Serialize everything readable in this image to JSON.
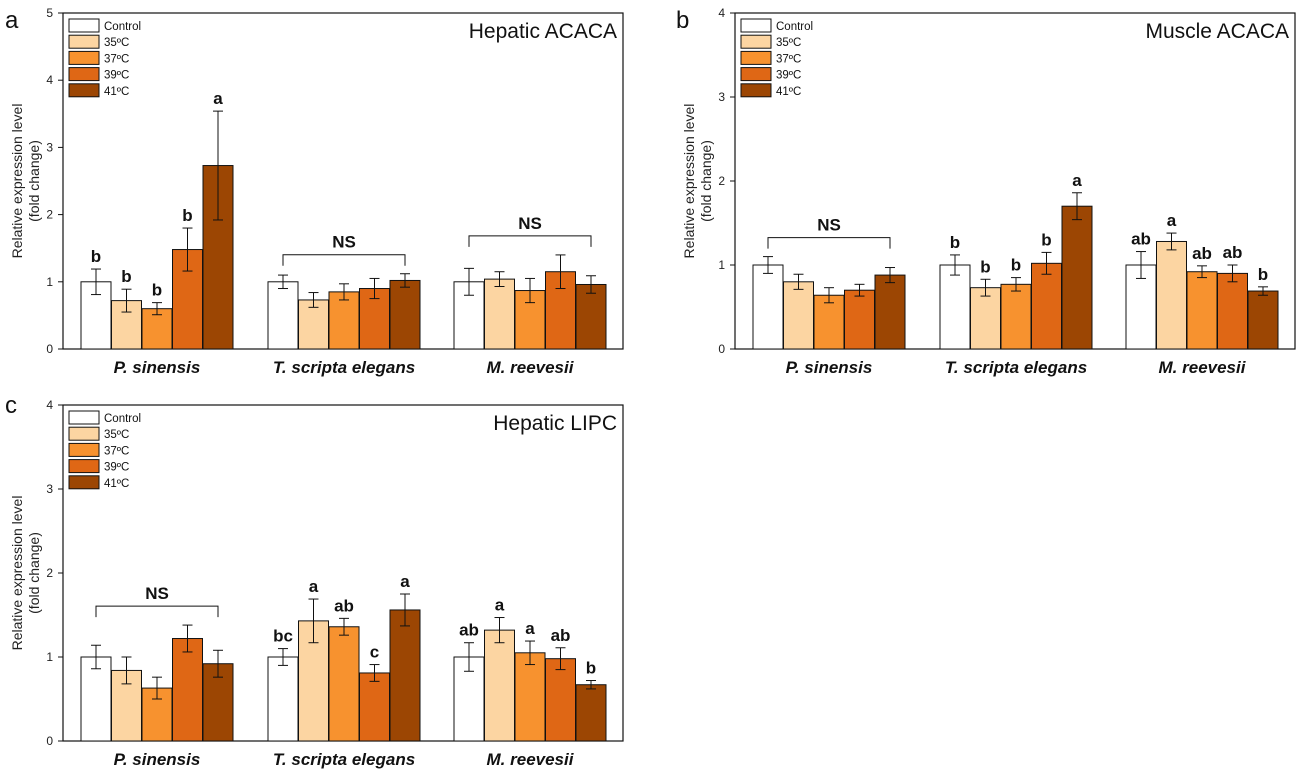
{
  "figure": {
    "y_axis_label_line1": "Relative expression level",
    "y_axis_label_line2": "(fold change)"
  },
  "legend": [
    {
      "label": "Control",
      "color": "#ffffff"
    },
    {
      "label": "35ºC",
      "color": "#fcd5a2"
    },
    {
      "label": "37ºC",
      "color": "#f7922f"
    },
    {
      "label": "39ºC",
      "color": "#df6715"
    },
    {
      "label": "41ºC",
      "color": "#9c4603"
    }
  ],
  "chart_data": [
    {
      "panel": "a",
      "type": "bar",
      "title": "Hepatic ACACA",
      "ylabel": "Relative expression level (fold change)",
      "ylim": [
        0,
        5
      ],
      "yticks": [
        0,
        1,
        2,
        3,
        4,
        5
      ],
      "categories": [
        "P. sinensis",
        "T. scripta elegans",
        "M. reevesii"
      ],
      "series": [
        {
          "name": "Control",
          "values": [
            1.0,
            1.0,
            1.0
          ],
          "errors": [
            0.19,
            0.1,
            0.2
          ]
        },
        {
          "name": "35ºC",
          "values": [
            0.72,
            0.73,
            1.04
          ],
          "errors": [
            0.17,
            0.11,
            0.11
          ]
        },
        {
          "name": "37ºC",
          "values": [
            0.6,
            0.85,
            0.87
          ],
          "errors": [
            0.09,
            0.12,
            0.18
          ]
        },
        {
          "name": "39ºC",
          "values": [
            1.48,
            0.9,
            1.15
          ],
          "errors": [
            0.32,
            0.15,
            0.25
          ]
        },
        {
          "name": "41ºC",
          "values": [
            2.73,
            1.02,
            0.96
          ],
          "errors": [
            0.81,
            0.1,
            0.13
          ]
        }
      ],
      "annotations": [
        [
          "b",
          "b",
          "b",
          "b",
          "a"
        ],
        [
          null,
          null,
          null,
          null,
          null
        ],
        [
          null,
          null,
          null,
          null,
          null
        ]
      ],
      "ns_groups": [
        1,
        2
      ],
      "ns_label": "NS"
    },
    {
      "panel": "b",
      "type": "bar",
      "title": "Muscle ACACA",
      "ylabel": "Relative expression level (fold change)",
      "ylim": [
        0,
        4
      ],
      "yticks": [
        0,
        1,
        2,
        3,
        4
      ],
      "categories": [
        "P. sinensis",
        "T. scripta elegans",
        "M. reevesii"
      ],
      "series": [
        {
          "name": "Control",
          "values": [
            1.0,
            1.0,
            1.0
          ],
          "errors": [
            0.1,
            0.12,
            0.16
          ]
        },
        {
          "name": "35ºC",
          "values": [
            0.8,
            0.73,
            1.28
          ],
          "errors": [
            0.09,
            0.1,
            0.1
          ]
        },
        {
          "name": "37ºC",
          "values": [
            0.64,
            0.77,
            0.92
          ],
          "errors": [
            0.09,
            0.08,
            0.07
          ]
        },
        {
          "name": "39ºC",
          "values": [
            0.7,
            1.02,
            0.9
          ],
          "errors": [
            0.07,
            0.13,
            0.1
          ]
        },
        {
          "name": "41ºC",
          "values": [
            0.88,
            1.7,
            0.69
          ],
          "errors": [
            0.09,
            0.16,
            0.05
          ]
        }
      ],
      "annotations": [
        [
          null,
          null,
          null,
          null,
          null
        ],
        [
          "b",
          "b",
          "b",
          "b",
          "a"
        ],
        [
          "ab",
          "a",
          "ab",
          "ab",
          "b"
        ]
      ],
      "ns_groups": [
        0
      ],
      "ns_label": "NS"
    },
    {
      "panel": "c",
      "type": "bar",
      "title": "Hepatic LIPC",
      "ylabel": "Relative expression level (fold change)",
      "ylim": [
        0,
        4
      ],
      "yticks": [
        0,
        1,
        2,
        3,
        4
      ],
      "categories": [
        "P. sinensis",
        "T. scripta elegans",
        "M. reevesii"
      ],
      "series": [
        {
          "name": "Control",
          "values": [
            1.0,
            1.0,
            1.0
          ],
          "errors": [
            0.14,
            0.1,
            0.17
          ]
        },
        {
          "name": "35ºC",
          "values": [
            0.84,
            1.43,
            1.32
          ],
          "errors": [
            0.16,
            0.26,
            0.15
          ]
        },
        {
          "name": "37ºC",
          "values": [
            0.63,
            1.36,
            1.05
          ],
          "errors": [
            0.13,
            0.1,
            0.14
          ]
        },
        {
          "name": "39ºC",
          "values": [
            1.22,
            0.81,
            0.98
          ],
          "errors": [
            0.16,
            0.1,
            0.13
          ]
        },
        {
          "name": "41ºC",
          "values": [
            0.92,
            1.56,
            0.67
          ],
          "errors": [
            0.16,
            0.19,
            0.05
          ]
        }
      ],
      "annotations": [
        [
          null,
          null,
          null,
          null,
          null
        ],
        [
          "bc",
          "a",
          "ab",
          "c",
          "a"
        ],
        [
          "ab",
          "a",
          "a",
          "ab",
          "b"
        ]
      ],
      "ns_groups": [
        0
      ],
      "ns_label": "NS"
    }
  ]
}
